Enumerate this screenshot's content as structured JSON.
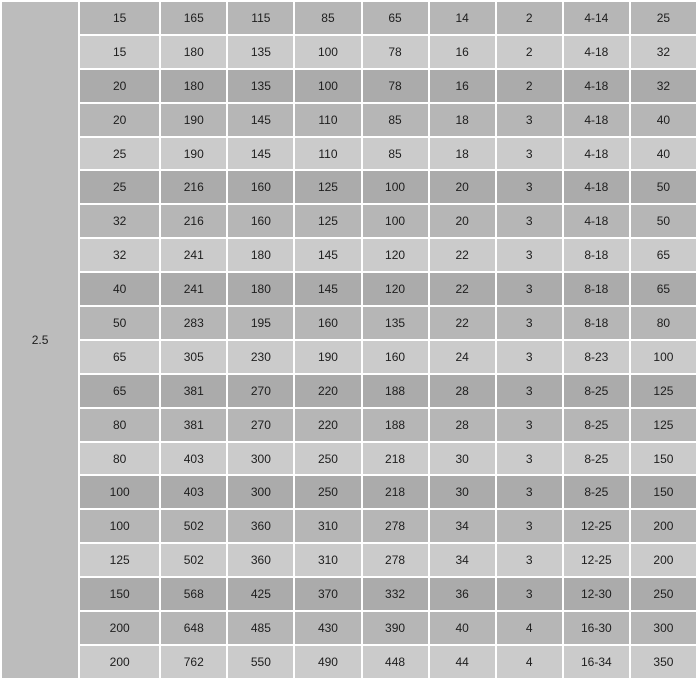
{
  "colors": {
    "row_medium": "#b6b6b6",
    "row_light": "#cbcbcb",
    "row_dark": "#ababab",
    "group_cell": "#bcbcbc",
    "grid": "#ffffff",
    "text": "#1d1d1d"
  },
  "chart_data": {
    "type": "table",
    "group_label": "2.5",
    "row_shade_cycle": [
      "medium",
      "light",
      "dark"
    ],
    "rows": [
      [
        "15",
        "165",
        "115",
        "85",
        "65",
        "14",
        "2",
        "4-14",
        "25"
      ],
      [
        "15",
        "180",
        "135",
        "100",
        "78",
        "16",
        "2",
        "4-18",
        "32"
      ],
      [
        "20",
        "180",
        "135",
        "100",
        "78",
        "16",
        "2",
        "4-18",
        "32"
      ],
      [
        "20",
        "190",
        "145",
        "110",
        "85",
        "18",
        "3",
        "4-18",
        "40"
      ],
      [
        "25",
        "190",
        "145",
        "110",
        "85",
        "18",
        "3",
        "4-18",
        "40"
      ],
      [
        "25",
        "216",
        "160",
        "125",
        "100",
        "20",
        "3",
        "4-18",
        "50"
      ],
      [
        "32",
        "216",
        "160",
        "125",
        "100",
        "20",
        "3",
        "4-18",
        "50"
      ],
      [
        "32",
        "241",
        "180",
        "145",
        "120",
        "22",
        "3",
        "8-18",
        "65"
      ],
      [
        "40",
        "241",
        "180",
        "145",
        "120",
        "22",
        "3",
        "8-18",
        "65"
      ],
      [
        "50",
        "283",
        "195",
        "160",
        "135",
        "22",
        "3",
        "8-18",
        "80"
      ],
      [
        "65",
        "305",
        "230",
        "190",
        "160",
        "24",
        "3",
        "8-23",
        "100"
      ],
      [
        "65",
        "381",
        "270",
        "220",
        "188",
        "28",
        "3",
        "8-25",
        "125"
      ],
      [
        "80",
        "381",
        "270",
        "220",
        "188",
        "28",
        "3",
        "8-25",
        "125"
      ],
      [
        "80",
        "403",
        "300",
        "250",
        "218",
        "30",
        "3",
        "8-25",
        "150"
      ],
      [
        "100",
        "403",
        "300",
        "250",
        "218",
        "30",
        "3",
        "8-25",
        "150"
      ],
      [
        "100",
        "502",
        "360",
        "310",
        "278",
        "34",
        "3",
        "12-25",
        "200"
      ],
      [
        "125",
        "502",
        "360",
        "310",
        "278",
        "34",
        "3",
        "12-25",
        "200"
      ],
      [
        "150",
        "568",
        "425",
        "370",
        "332",
        "36",
        "3",
        "12-30",
        "250"
      ],
      [
        "200",
        "648",
        "485",
        "430",
        "390",
        "40",
        "4",
        "16-30",
        "300"
      ],
      [
        "200",
        "762",
        "550",
        "490",
        "448",
        "44",
        "4",
        "16-34",
        "350"
      ]
    ]
  }
}
